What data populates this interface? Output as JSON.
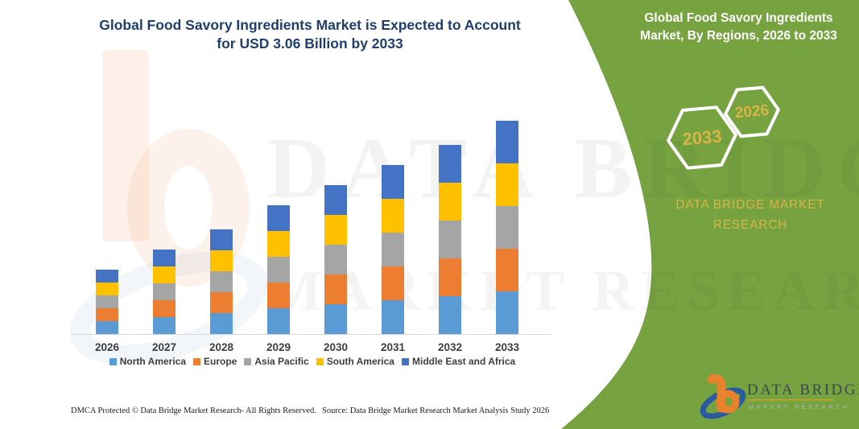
{
  "header": {
    "title_line1": "Global Food Savory Ingredients Market is Expected to Account",
    "title_line2": "for USD 3.06 Billion by 2033"
  },
  "side_panel": {
    "title": "Global Food Savory Ingredients Market, By Regions, 2026 to 2033",
    "hexagon_year_back": "2033",
    "hexagon_year_front": "2026",
    "brand_line1": "DATA BRIDGE MARKET",
    "brand_line2": "RESEARCH",
    "colors": {
      "panel_green": "#76A33F",
      "accent_gold": "#D7B545"
    }
  },
  "watermark": {
    "line1": "DATA BRIDGE",
    "line2": "MARKET RESEARCH"
  },
  "logo": {
    "name": "DATA BRIDGE",
    "subtext": "MARKET RESEARCH",
    "colors": {
      "orange": "#E8822C",
      "blue": "#2B5AA0",
      "text": "#3D4653",
      "underline": "#C9A227"
    }
  },
  "footer": {
    "dmca": "DMCA Protected © Data Bridge Market Research-  All Rights Reserved.",
    "source": "Source: Data Bridge Market Research  Market Analysis Study 2026"
  },
  "chart_data": {
    "type": "bar",
    "stacked": true,
    "values_estimated": true,
    "unit": "USD Billion",
    "title": "Global Food Savory Ingredients Market, By Regions, 2026 to 2033",
    "categories": [
      "2026",
      "2027",
      "2028",
      "2029",
      "2030",
      "2031",
      "2032",
      "2033"
    ],
    "series": [
      {
        "name": "North America",
        "color": "#5B9BD5",
        "values": [
          0.184,
          0.244,
          0.304,
          0.366,
          0.426,
          0.488,
          0.548,
          0.612
        ]
      },
      {
        "name": "Europe",
        "color": "#ED7D31",
        "values": [
          0.184,
          0.244,
          0.304,
          0.366,
          0.426,
          0.488,
          0.548,
          0.612
        ]
      },
      {
        "name": "Asia Pacific",
        "color": "#A5A5A5",
        "values": [
          0.184,
          0.244,
          0.304,
          0.366,
          0.426,
          0.488,
          0.548,
          0.612
        ]
      },
      {
        "name": "South America",
        "color": "#FFC000",
        "values": [
          0.184,
          0.244,
          0.304,
          0.366,
          0.426,
          0.488,
          0.548,
          0.612
        ]
      },
      {
        "name": "Middle East and Africa",
        "color": "#4472C4",
        "values": [
          0.184,
          0.244,
          0.304,
          0.366,
          0.426,
          0.488,
          0.548,
          0.612
        ]
      }
    ],
    "totals": [
      0.92,
      1.22,
      1.52,
      1.83,
      2.13,
      2.44,
      2.74,
      3.06
    ],
    "ylim": [
      0,
      3.2
    ],
    "gridlines": false,
    "y_axis_labels": false,
    "legend_position": "bottom"
  }
}
